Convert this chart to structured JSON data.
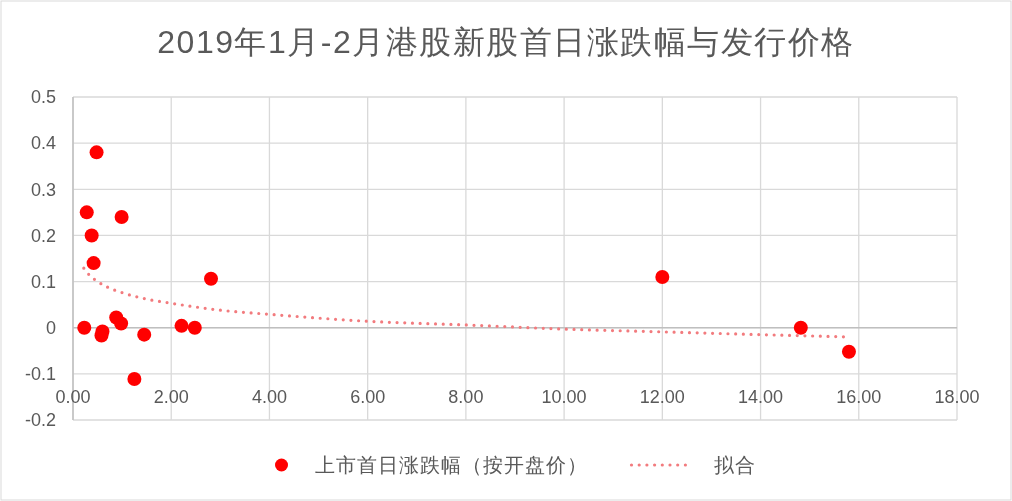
{
  "chart_data": {
    "type": "scatter",
    "title": "2019年1月-2月港股新股首日涨跌幅与发行价格",
    "xlim": [
      0,
      18
    ],
    "xticks": [
      {
        "value": 0,
        "label": "0.00"
      },
      {
        "value": 2,
        "label": "2.00"
      },
      {
        "value": 4,
        "label": "4.00"
      },
      {
        "value": 6,
        "label": "6.00"
      },
      {
        "value": 8,
        "label": "8.00"
      },
      {
        "value": 10,
        "label": "10.00"
      },
      {
        "value": 12,
        "label": "12.00"
      },
      {
        "value": 14,
        "label": "14.00"
      },
      {
        "value": 16,
        "label": "16.00"
      },
      {
        "value": 18,
        "label": "18.00"
      }
    ],
    "ylim": [
      -0.2,
      0.5
    ],
    "yticks": [
      -0.2,
      -0.1,
      0,
      0.1,
      0.2,
      0.3,
      0.4,
      0.5
    ],
    "grid": true,
    "legend": "bottom",
    "series": [
      {
        "name": "上市首日涨跌幅（按开盘价）",
        "type": "scatter",
        "color": "#ff0000",
        "marker": "circle",
        "x": [
          0.23,
          0.28,
          0.38,
          0.42,
          0.48,
          0.58,
          0.6,
          0.88,
          0.98,
          0.99,
          1.25,
          1.45,
          2.21,
          2.48,
          2.81,
          12.0,
          14.82,
          15.8
        ],
        "values": [
          0,
          0.25,
          0.2,
          0.14,
          0.38,
          -0.017,
          -0.008,
          0.022,
          0.009,
          0.24,
          -0.111,
          -0.015,
          0.004,
          0,
          0.106,
          0.11,
          0,
          -0.052
        ]
      },
      {
        "name": "拟合",
        "type": "line",
        "color": "#f27b7e",
        "line_style": "dotted",
        "marker": "none",
        "x": [
          0.22,
          0.3,
          0.4,
          0.5,
          0.7,
          1,
          1.5,
          2,
          3,
          4,
          6,
          8,
          10,
          12,
          14,
          15.8
        ],
        "values": [
          0.129,
          0.118,
          0.108,
          0.1,
          0.088,
          0.076,
          0.062,
          0.053,
          0.038,
          0.029,
          0.014,
          0.006,
          -0.003,
          -0.009,
          -0.015,
          -0.02
        ]
      }
    ]
  }
}
